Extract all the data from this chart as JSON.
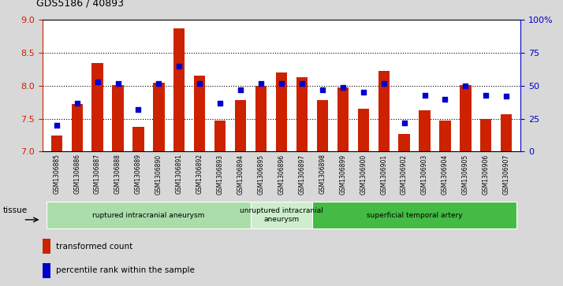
{
  "title": "GDS5186 / 40893",
  "samples": [
    "GSM1306885",
    "GSM1306886",
    "GSM1306887",
    "GSM1306888",
    "GSM1306889",
    "GSM1306890",
    "GSM1306891",
    "GSM1306892",
    "GSM1306893",
    "GSM1306894",
    "GSM1306895",
    "GSM1306896",
    "GSM1306897",
    "GSM1306898",
    "GSM1306899",
    "GSM1306900",
    "GSM1306901",
    "GSM1306902",
    "GSM1306903",
    "GSM1306904",
    "GSM1306905",
    "GSM1306906",
    "GSM1306907"
  ],
  "bar_values": [
    7.25,
    7.72,
    8.35,
    8.01,
    7.38,
    8.05,
    8.87,
    8.15,
    7.47,
    7.78,
    8.0,
    8.2,
    8.13,
    7.78,
    7.97,
    7.65,
    8.23,
    7.27,
    7.63,
    7.47,
    8.01,
    7.5,
    7.57
  ],
  "percentile_values": [
    20,
    37,
    53,
    52,
    32,
    52,
    65,
    52,
    37,
    47,
    52,
    52,
    52,
    47,
    49,
    45,
    52,
    22,
    43,
    40,
    50,
    43,
    42
  ],
  "bar_color": "#cc2200",
  "dot_color": "#0000cc",
  "ylim_left": [
    7.0,
    9.0
  ],
  "yticks_left": [
    7.0,
    7.5,
    8.0,
    8.5,
    9.0
  ],
  "yticks_right": [
    0,
    25,
    50,
    75,
    100
  ],
  "yticklabels_right": [
    "0",
    "25",
    "50",
    "75",
    "100%"
  ],
  "grid_values": [
    7.5,
    8.0,
    8.5
  ],
  "groups": [
    {
      "label": "ruptured intracranial aneurysm",
      "start": 0,
      "end": 10,
      "color": "#aaddaa"
    },
    {
      "label": "unruptured intracranial\naneurysm",
      "start": 10,
      "end": 13,
      "color": "#cceecc"
    },
    {
      "label": "superficial temporal artery",
      "start": 13,
      "end": 23,
      "color": "#44bb44"
    }
  ],
  "legend_items": [
    {
      "label": "transformed count",
      "color": "#cc2200"
    },
    {
      "label": "percentile rank within the sample",
      "color": "#0000cc"
    }
  ],
  "tissue_label": "tissue",
  "background_color": "#d8d8d8",
  "plot_bg_color": "#ffffff"
}
